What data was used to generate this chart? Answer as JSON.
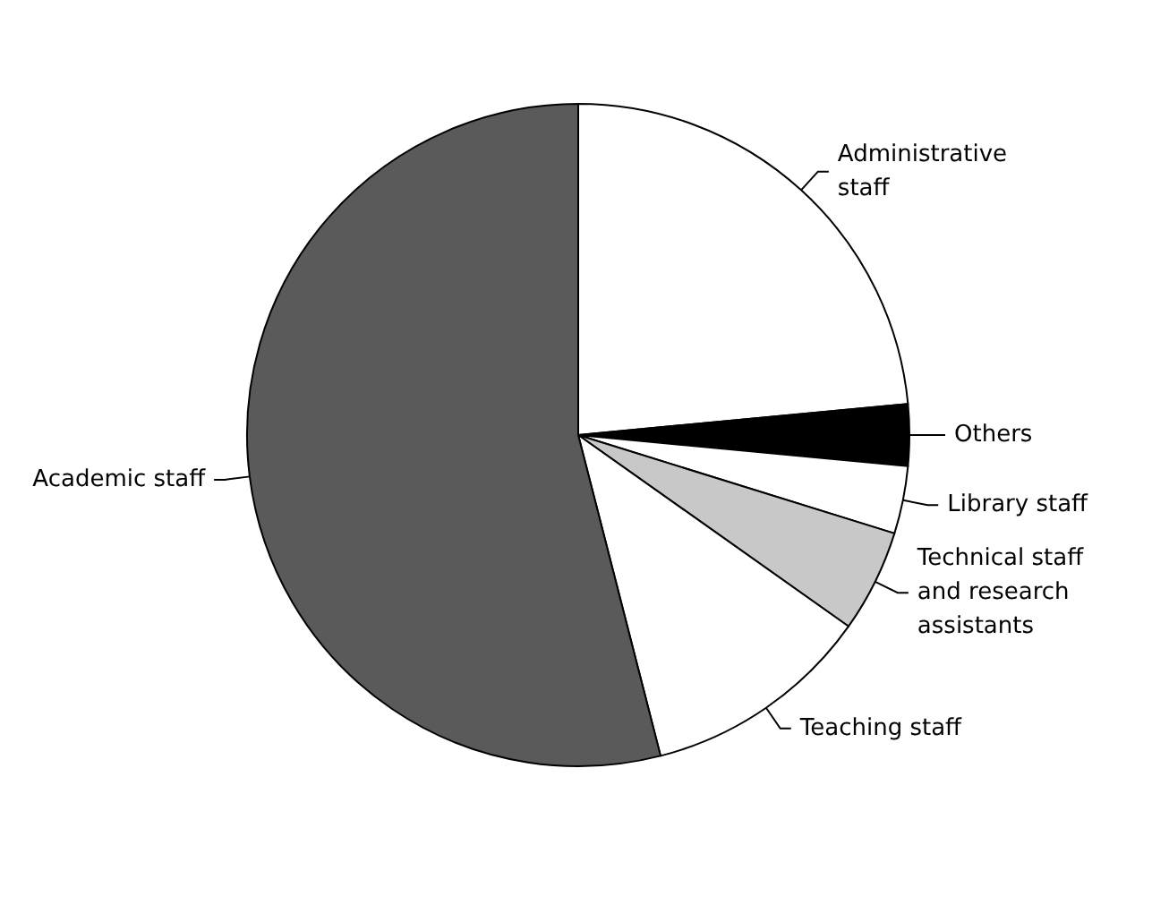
{
  "chart_data": {
    "type": "pie",
    "categories": [
      "Administrative staff",
      "Others",
      "Library staff",
      "Technical staff and research assistants",
      "Teaching staff",
      "Academic staff"
    ],
    "values": [
      23.5,
      3,
      3.3,
      5,
      11.2,
      54
    ],
    "colors": [
      "#ffffff",
      "#000000",
      "#ffffff",
      "#c8c8c8",
      "#ffffff",
      "#5a5a5a"
    ],
    "legend": false
  }
}
